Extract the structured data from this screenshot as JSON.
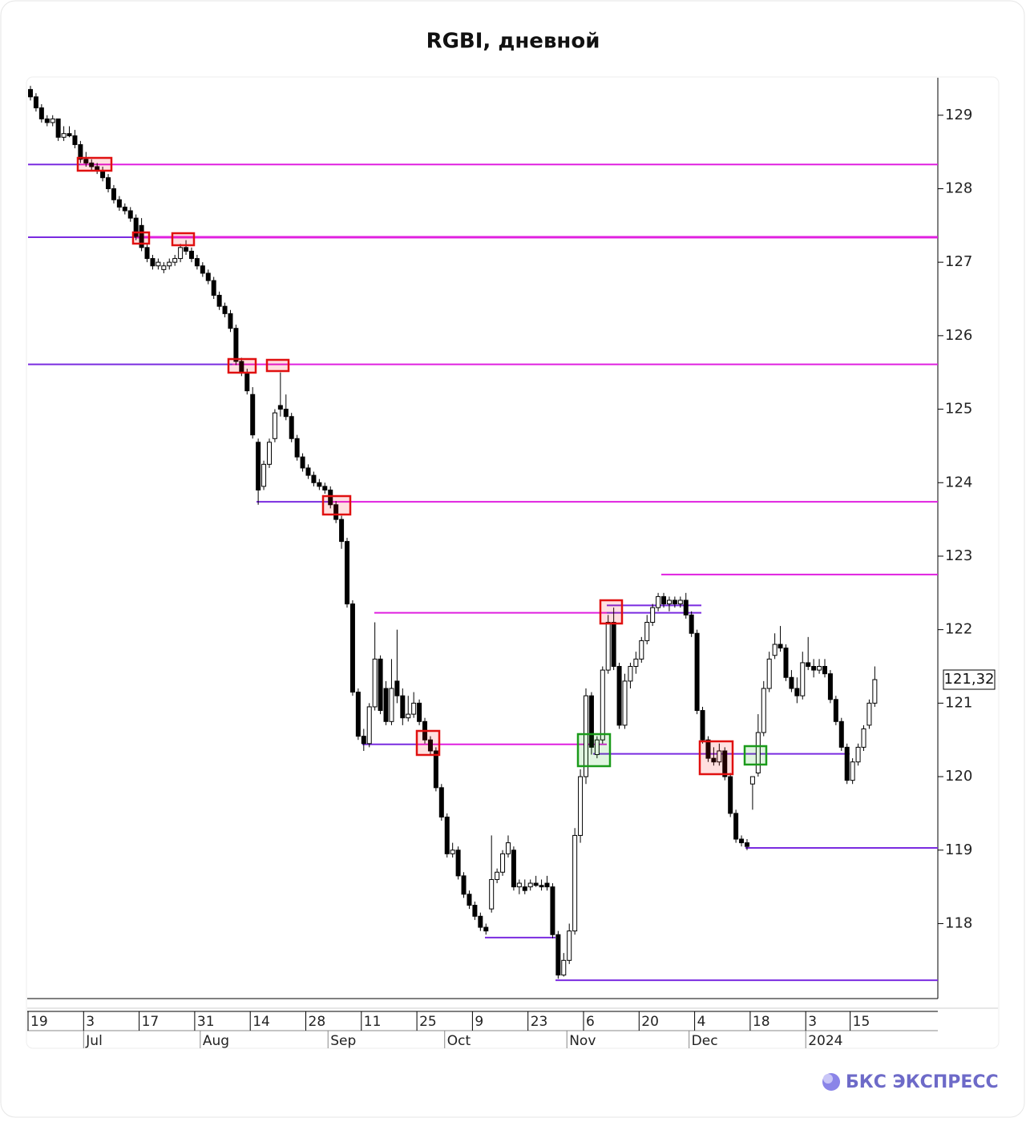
{
  "chart_data": {
    "type": "candlestick",
    "title": "RGBI, дневной",
    "brand": "БКС ЭКСПРЕСС",
    "last_label": "121,32",
    "ylim": [
      116.98,
      129.51
    ],
    "yticks": [
      118,
      119,
      120,
      121,
      122,
      123,
      124,
      125,
      126,
      127,
      128,
      129
    ],
    "up_color": "#ffffff",
    "down_color": "#000000",
    "categories": [
      "19",
      null,
      null,
      null,
      null,
      null,
      null,
      null,
      null,
      null,
      "3",
      null,
      null,
      null,
      null,
      null,
      null,
      null,
      null,
      null,
      "17",
      null,
      null,
      null,
      null,
      null,
      null,
      null,
      null,
      null,
      "31",
      null,
      null,
      null,
      null,
      null,
      null,
      null,
      null,
      null,
      "14",
      null,
      null,
      null,
      null,
      null,
      null,
      null,
      null,
      null,
      "28",
      null,
      null,
      null,
      null,
      null,
      null,
      null,
      null,
      null,
      "11",
      null,
      null,
      null,
      null,
      null,
      null,
      null,
      null,
      null,
      "25",
      null,
      null,
      null,
      null,
      null,
      null,
      null,
      null,
      null,
      "9",
      null,
      null,
      null,
      null,
      null,
      null,
      null,
      null,
      null,
      "23",
      null,
      null,
      null,
      null,
      null,
      null,
      null,
      null,
      null,
      "6",
      null,
      null,
      null,
      null,
      null,
      null,
      null,
      null,
      null,
      "20",
      null,
      null,
      null,
      null,
      null,
      null,
      null,
      null,
      null,
      "4",
      null,
      null,
      null,
      null,
      null,
      null,
      null,
      null,
      null,
      "18",
      null,
      null,
      null,
      null,
      null,
      null,
      null,
      null,
      null,
      "3",
      null,
      null,
      null,
      null,
      null,
      null,
      null,
      "15",
      null,
      null,
      null,
      null
    ],
    "months": [
      null,
      null,
      null,
      null,
      null,
      null,
      null,
      null,
      null,
      null,
      "Jul",
      null,
      null,
      null,
      null,
      null,
      null,
      null,
      null,
      null,
      null,
      null,
      null,
      null,
      null,
      null,
      null,
      null,
      null,
      null,
      null,
      "Aug",
      null,
      null,
      null,
      null,
      null,
      null,
      null,
      null,
      null,
      null,
      null,
      null,
      null,
      null,
      null,
      null,
      null,
      null,
      null,
      null,
      null,
      null,
      "Sep",
      null,
      null,
      null,
      null,
      null,
      null,
      null,
      null,
      null,
      null,
      null,
      null,
      null,
      null,
      null,
      null,
      null,
      null,
      null,
      null,
      "Oct",
      null,
      null,
      null,
      null,
      null,
      null,
      null,
      null,
      null,
      null,
      null,
      null,
      null,
      null,
      null,
      null,
      null,
      null,
      null,
      null,
      null,
      "Nov",
      null,
      null,
      null,
      null,
      null,
      null,
      null,
      null,
      null,
      null,
      null,
      null,
      null,
      null,
      null,
      null,
      null,
      null,
      null,
      null,
      null,
      "Dec",
      null,
      null,
      null,
      null,
      null,
      null,
      null,
      null,
      null,
      null,
      null,
      null,
      null,
      null,
      null,
      null,
      null,
      null,
      null,
      null,
      "2024",
      null,
      null,
      null,
      null,
      null,
      null,
      null,
      null,
      null,
      null,
      null,
      null
    ],
    "ohlc": [
      [
        129.35,
        129.4,
        129.2,
        129.25
      ],
      [
        129.25,
        129.3,
        129.05,
        129.1
      ],
      [
        129.1,
        129.15,
        128.9,
        128.95
      ],
      [
        128.95,
        129.0,
        128.85,
        128.9
      ],
      [
        128.9,
        129.0,
        128.85,
        128.95
      ],
      [
        128.95,
        128.95,
        128.65,
        128.7
      ],
      [
        128.7,
        128.85,
        128.65,
        128.75
      ],
      [
        128.75,
        128.85,
        128.7,
        128.72
      ],
      [
        128.72,
        128.8,
        128.55,
        128.6
      ],
      [
        128.6,
        128.65,
        128.35,
        128.4
      ],
      [
        128.4,
        128.5,
        128.3,
        128.35
      ],
      [
        128.35,
        128.4,
        128.25,
        128.3
      ],
      [
        128.3,
        128.35,
        128.2,
        128.25
      ],
      [
        128.25,
        128.3,
        128.1,
        128.15
      ],
      [
        128.15,
        128.2,
        127.95,
        128.0
      ],
      [
        128.0,
        128.05,
        127.8,
        127.85
      ],
      [
        127.85,
        127.9,
        127.7,
        127.75
      ],
      [
        127.75,
        127.8,
        127.65,
        127.7
      ],
      [
        127.7,
        127.75,
        127.55,
        127.6
      ],
      [
        127.6,
        127.65,
        127.3,
        127.35
      ],
      [
        127.5,
        127.6,
        127.15,
        127.2
      ],
      [
        127.2,
        127.25,
        127.0,
        127.05
      ],
      [
        127.05,
        127.1,
        126.9,
        126.95
      ],
      [
        126.95,
        127.05,
        126.9,
        127.0
      ],
      [
        126.9,
        127.0,
        126.85,
        126.95
      ],
      [
        126.95,
        127.05,
        126.9,
        127.0
      ],
      [
        127.0,
        127.1,
        126.95,
        127.05
      ],
      [
        127.05,
        127.25,
        127.0,
        127.2
      ],
      [
        127.2,
        127.3,
        127.1,
        127.15
      ],
      [
        127.15,
        127.2,
        127.0,
        127.05
      ],
      [
        127.05,
        127.1,
        126.9,
        126.95
      ],
      [
        126.95,
        127.0,
        126.8,
        126.85
      ],
      [
        126.85,
        126.9,
        126.7,
        126.75
      ],
      [
        126.75,
        126.8,
        126.5,
        126.55
      ],
      [
        126.55,
        126.6,
        126.35,
        126.4
      ],
      [
        126.4,
        126.45,
        126.25,
        126.3
      ],
      [
        126.3,
        126.35,
        126.05,
        126.1
      ],
      [
        126.1,
        126.15,
        125.6,
        125.65
      ],
      [
        125.65,
        125.7,
        125.45,
        125.5
      ],
      [
        125.5,
        125.55,
        125.2,
        125.25
      ],
      [
        125.2,
        125.3,
        124.6,
        124.65
      ],
      [
        124.55,
        124.6,
        123.7,
        123.9
      ],
      [
        123.95,
        124.3,
        123.9,
        124.25
      ],
      [
        124.25,
        124.6,
        124.2,
        124.55
      ],
      [
        124.6,
        125.0,
        124.55,
        124.95
      ],
      [
        125.05,
        125.5,
        124.9,
        125.0
      ],
      [
        125.0,
        125.2,
        124.85,
        124.9
      ],
      [
        124.9,
        124.95,
        124.55,
        124.6
      ],
      [
        124.6,
        124.65,
        124.3,
        124.35
      ],
      [
        124.35,
        124.4,
        124.15,
        124.2
      ],
      [
        124.2,
        124.25,
        124.05,
        124.1
      ],
      [
        124.1,
        124.15,
        123.95,
        124.0
      ],
      [
        124.0,
        124.05,
        123.9,
        123.95
      ],
      [
        123.95,
        124.0,
        123.85,
        123.9
      ],
      [
        123.9,
        123.95,
        123.65,
        123.7
      ],
      [
        123.7,
        123.75,
        123.45,
        123.5
      ],
      [
        123.5,
        123.55,
        123.1,
        123.2
      ],
      [
        123.2,
        123.25,
        122.3,
        122.35
      ],
      [
        122.35,
        122.4,
        121.1,
        121.15
      ],
      [
        121.15,
        121.2,
        120.5,
        120.55
      ],
      [
        120.55,
        120.65,
        120.35,
        120.45
      ],
      [
        120.45,
        121.0,
        120.4,
        120.95
      ],
      [
        120.95,
        122.1,
        120.9,
        121.6
      ],
      [
        121.6,
        121.65,
        120.85,
        120.9
      ],
      [
        121.2,
        121.3,
        120.7,
        120.75
      ],
      [
        120.75,
        121.6,
        120.7,
        121.2
      ],
      [
        121.3,
        122.0,
        121.0,
        121.1
      ],
      [
        121.1,
        121.2,
        120.7,
        120.8
      ],
      [
        120.8,
        121.1,
        120.75,
        120.85
      ],
      [
        120.85,
        121.15,
        120.8,
        121.0
      ],
      [
        121.0,
        121.05,
        120.7,
        120.75
      ],
      [
        120.75,
        120.8,
        120.45,
        120.5
      ],
      [
        120.5,
        120.55,
        120.3,
        120.35
      ],
      [
        120.35,
        120.4,
        119.8,
        119.85
      ],
      [
        119.85,
        119.9,
        119.4,
        119.45
      ],
      [
        119.45,
        119.5,
        118.9,
        118.95
      ],
      [
        118.95,
        119.1,
        118.9,
        119.0
      ],
      [
        119.0,
        119.05,
        118.6,
        118.65
      ],
      [
        118.65,
        118.7,
        118.35,
        118.4
      ],
      [
        118.4,
        118.45,
        118.2,
        118.25
      ],
      [
        118.25,
        118.3,
        118.05,
        118.1
      ],
      [
        118.1,
        118.15,
        117.9,
        117.95
      ],
      [
        117.95,
        118.0,
        117.85,
        117.9
      ],
      [
        118.2,
        119.2,
        118.15,
        118.6
      ],
      [
        118.6,
        118.75,
        118.55,
        118.7
      ],
      [
        118.7,
        119.0,
        118.65,
        118.95
      ],
      [
        118.95,
        119.2,
        118.9,
        119.1
      ],
      [
        119.0,
        119.05,
        118.45,
        118.5
      ],
      [
        118.5,
        118.6,
        118.4,
        118.55
      ],
      [
        118.5,
        118.6,
        118.4,
        118.45
      ],
      [
        118.5,
        118.6,
        118.45,
        118.55
      ],
      [
        118.55,
        118.65,
        118.5,
        118.52
      ],
      [
        118.52,
        118.6,
        118.45,
        118.5
      ],
      [
        118.55,
        118.65,
        118.45,
        118.5
      ],
      [
        118.5,
        118.55,
        117.8,
        117.85
      ],
      [
        117.85,
        117.9,
        117.25,
        117.3
      ],
      [
        117.3,
        117.6,
        117.28,
        117.5
      ],
      [
        117.5,
        118.0,
        117.45,
        117.9
      ],
      [
        117.9,
        119.3,
        117.85,
        119.2
      ],
      [
        119.2,
        120.1,
        119.1,
        120.0
      ],
      [
        120.0,
        121.2,
        119.9,
        121.1
      ],
      [
        121.1,
        121.15,
        120.3,
        120.4
      ],
      [
        120.3,
        120.55,
        120.25,
        120.5
      ],
      [
        120.5,
        121.5,
        120.45,
        121.45
      ],
      [
        121.45,
        122.2,
        121.4,
        122.1
      ],
      [
        122.1,
        122.3,
        121.45,
        121.5
      ],
      [
        121.5,
        121.55,
        120.65,
        120.7
      ],
      [
        120.7,
        121.4,
        120.65,
        121.3
      ],
      [
        121.3,
        121.55,
        121.2,
        121.5
      ],
      [
        121.5,
        121.7,
        121.4,
        121.6
      ],
      [
        121.6,
        121.9,
        121.55,
        121.85
      ],
      [
        121.85,
        122.2,
        121.8,
        122.1
      ],
      [
        122.1,
        122.35,
        122.05,
        122.3
      ],
      [
        122.3,
        122.5,
        122.25,
        122.45
      ],
      [
        122.45,
        122.5,
        122.3,
        122.35
      ],
      [
        122.35,
        122.45,
        122.25,
        122.4
      ],
      [
        122.4,
        122.45,
        122.3,
        122.35
      ],
      [
        122.35,
        122.45,
        122.3,
        122.4
      ],
      [
        122.4,
        122.5,
        122.15,
        122.2
      ],
      [
        122.2,
        122.25,
        121.9,
        121.95
      ],
      [
        121.95,
        122.0,
        120.85,
        120.9
      ],
      [
        120.9,
        120.95,
        120.45,
        120.5
      ],
      [
        120.5,
        120.55,
        120.2,
        120.25
      ],
      [
        120.25,
        120.4,
        120.15,
        120.2
      ],
      [
        120.2,
        120.45,
        120.15,
        120.35
      ],
      [
        120.35,
        120.4,
        119.95,
        120.0
      ],
      [
        120.0,
        120.05,
        119.45,
        119.5
      ],
      [
        119.5,
        119.55,
        119.1,
        119.15
      ],
      [
        119.15,
        119.2,
        119.05,
        119.1
      ],
      [
        119.1,
        119.15,
        119.0,
        119.05
      ],
      [
        119.9,
        120.0,
        119.55,
        120.0
      ],
      [
        120.05,
        120.85,
        120.0,
        120.6
      ],
      [
        120.6,
        121.3,
        120.55,
        121.2
      ],
      [
        121.2,
        121.7,
        121.15,
        121.6
      ],
      [
        121.65,
        121.95,
        121.6,
        121.8
      ],
      [
        121.8,
        122.05,
        121.7,
        121.75
      ],
      [
        121.75,
        121.8,
        121.3,
        121.35
      ],
      [
        121.35,
        121.45,
        121.15,
        121.2
      ],
      [
        121.2,
        121.35,
        121.0,
        121.1
      ],
      [
        121.1,
        121.7,
        121.05,
        121.55
      ],
      [
        121.55,
        121.9,
        121.45,
        121.5
      ],
      [
        121.5,
        121.6,
        121.35,
        121.45
      ],
      [
        121.45,
        121.6,
        121.4,
        121.5
      ],
      [
        121.5,
        121.6,
        121.35,
        121.4
      ],
      [
        121.4,
        121.45,
        121.0,
        121.05
      ],
      [
        121.05,
        121.1,
        120.7,
        120.75
      ],
      [
        120.75,
        120.8,
        120.35,
        120.4
      ],
      [
        120.4,
        120.45,
        119.9,
        119.95
      ],
      [
        119.95,
        120.25,
        119.9,
        120.2
      ],
      [
        120.2,
        120.45,
        120.15,
        120.4
      ],
      [
        120.4,
        120.7,
        120.35,
        120.65
      ],
      [
        120.7,
        121.05,
        120.65,
        121.0
      ],
      [
        121.0,
        121.5,
        120.95,
        121.32
      ]
    ],
    "levels": [
      128.33,
      127.34,
      125.61,
      123.74,
      122.75,
      122.33,
      122.23,
      120.44,
      120.31,
      119.03,
      117.81,
      117.23
    ]
  }
}
